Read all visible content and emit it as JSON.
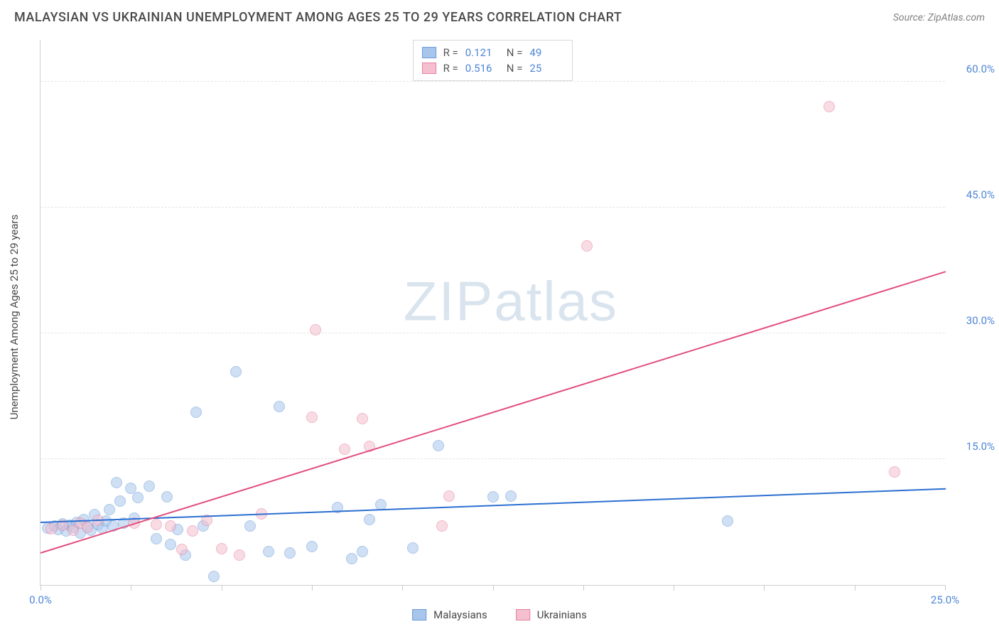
{
  "header": {
    "title": "MALAYSIAN VS UKRAINIAN UNEMPLOYMENT AMONG AGES 25 TO 29 YEARS CORRELATION CHART",
    "source_prefix": "Source: ",
    "source_name": "ZipAtlas.com"
  },
  "watermark": {
    "text_a": "ZIP",
    "text_b": "atlas"
  },
  "chart": {
    "type": "scatter",
    "ylabel": "Unemployment Among Ages 25 to 29 years",
    "xlim": [
      0,
      25
    ],
    "ylim": [
      0,
      65
    ],
    "xtick_positions": [
      0,
      2.5,
      5,
      7.5,
      10,
      12.5,
      15,
      17.5,
      20,
      22.5,
      25
    ],
    "xtick_labels": {
      "0": "0.0%",
      "25": "25.0%"
    },
    "ytick_positions": [
      15,
      30,
      45,
      60
    ],
    "ytick_labels": [
      "15.0%",
      "30.0%",
      "45.0%",
      "60.0%"
    ],
    "grid_color": "#e5e5e5",
    "axis_color": "#d0d0d0",
    "background_color": "#ffffff",
    "point_radius": 8,
    "point_opacity": 0.55,
    "series": [
      {
        "name": "Malaysians",
        "fill": "#a8c6ec",
        "stroke": "#6a9bd8",
        "trend_color": "#2c6fd1",
        "R": "0.121",
        "N": "49",
        "trend": {
          "x1": 0,
          "y1": 7.6,
          "x2": 25,
          "y2": 11.6
        },
        "points": [
          [
            0.2,
            6.8
          ],
          [
            0.4,
            7.0
          ],
          [
            0.5,
            6.6
          ],
          [
            0.6,
            7.3
          ],
          [
            0.7,
            6.4
          ],
          [
            0.8,
            7.1
          ],
          [
            0.9,
            6.9
          ],
          [
            1.0,
            7.5
          ],
          [
            1.1,
            6.2
          ],
          [
            1.2,
            7.8
          ],
          [
            1.3,
            7.0
          ],
          [
            1.4,
            6.5
          ],
          [
            1.5,
            8.4
          ],
          [
            1.6,
            7.2
          ],
          [
            1.7,
            6.8
          ],
          [
            1.8,
            7.6
          ],
          [
            1.9,
            9.0
          ],
          [
            2.0,
            7.0
          ],
          [
            2.1,
            12.2
          ],
          [
            2.2,
            10.0
          ],
          [
            2.3,
            7.4
          ],
          [
            2.5,
            11.5
          ],
          [
            2.6,
            8.0
          ],
          [
            2.7,
            10.4
          ],
          [
            3.0,
            11.8
          ],
          [
            3.2,
            5.5
          ],
          [
            3.5,
            10.5
          ],
          [
            3.6,
            4.8
          ],
          [
            3.8,
            6.6
          ],
          [
            4.0,
            3.6
          ],
          [
            4.3,
            20.6
          ],
          [
            4.5,
            7.0
          ],
          [
            4.8,
            1.0
          ],
          [
            5.4,
            25.4
          ],
          [
            5.8,
            7.0
          ],
          [
            6.3,
            4.0
          ],
          [
            6.6,
            21.3
          ],
          [
            6.9,
            3.8
          ],
          [
            7.5,
            4.6
          ],
          [
            8.2,
            9.2
          ],
          [
            8.6,
            3.1
          ],
          [
            8.9,
            4.0
          ],
          [
            9.1,
            7.8
          ],
          [
            9.4,
            9.6
          ],
          [
            10.3,
            4.4
          ],
          [
            11.0,
            16.6
          ],
          [
            12.5,
            10.5
          ],
          [
            13.0,
            10.6
          ],
          [
            19.0,
            7.6
          ]
        ]
      },
      {
        "name": "Ukrainians",
        "fill": "#f4c0cf",
        "stroke": "#e87ea0",
        "trend_color": "#e24f7d",
        "R": "0.516",
        "N": "25",
        "trend": {
          "x1": 0,
          "y1": 4.0,
          "x2": 25,
          "y2": 37.5
        },
        "points": [
          [
            0.3,
            6.7
          ],
          [
            0.6,
            7.1
          ],
          [
            0.9,
            6.5
          ],
          [
            1.1,
            7.4
          ],
          [
            1.3,
            6.9
          ],
          [
            1.6,
            7.7
          ],
          [
            2.6,
            7.4
          ],
          [
            3.2,
            7.2
          ],
          [
            3.6,
            7.0
          ],
          [
            3.9,
            4.2
          ],
          [
            4.2,
            6.4
          ],
          [
            4.6,
            7.7
          ],
          [
            5.0,
            4.3
          ],
          [
            5.5,
            3.6
          ],
          [
            6.1,
            8.5
          ],
          [
            7.5,
            20.0
          ],
          [
            7.6,
            30.4
          ],
          [
            8.4,
            16.2
          ],
          [
            8.9,
            19.8
          ],
          [
            9.1,
            16.5
          ],
          [
            11.1,
            7.0
          ],
          [
            11.3,
            10.6
          ],
          [
            15.1,
            40.4
          ],
          [
            21.8,
            57.0
          ],
          [
            23.6,
            13.5
          ]
        ]
      }
    ],
    "stats_legend": {
      "R_label": "R =",
      "N_label": "N ="
    },
    "bottom_legend": {
      "malaysians": "Malaysians",
      "ukrainians": "Ukrainians"
    }
  }
}
